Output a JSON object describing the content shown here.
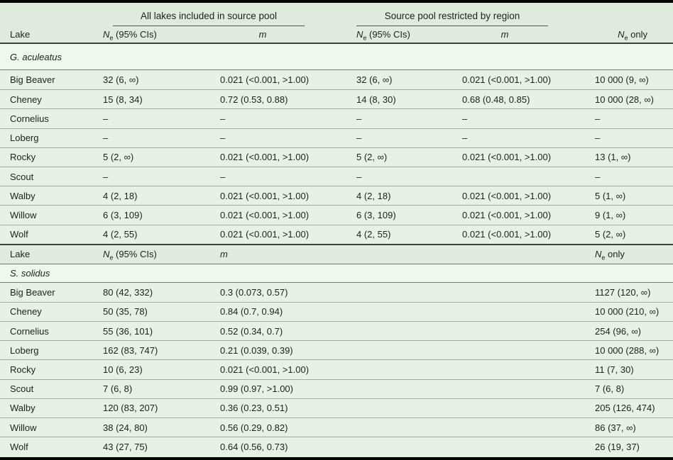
{
  "colors": {
    "page_background": "#e6f2e3",
    "header_background": "#dfebdc",
    "species_row_background": "#eef8eb",
    "frame_bar": "#050505",
    "heavy_rule": "#39423a",
    "row_rule": "#9fad9e",
    "text": "#1c211c"
  },
  "header": {
    "groups": [
      {
        "label": "All lakes included in source pool"
      },
      {
        "label": "Source pool restricted by region"
      }
    ],
    "columns": [
      "Lake",
      "Ne (95% CIs)",
      "m",
      "Ne (95% CIs)",
      "m",
      "Ne only"
    ]
  },
  "mid_header": {
    "columns": [
      "Lake",
      "Ne (95% CIs)",
      "m",
      "Ne only"
    ]
  },
  "sections": [
    {
      "species": "G. aculeatus",
      "rows": [
        {
          "lake": "Big Beaver",
          "ne_all": "32 (6, ∞)",
          "m_all": "0.021 (<0.001, >1.00)",
          "ne_region": "32 (6, ∞)",
          "m_region": "0.021 (<0.001, >1.00)",
          "ne_only": "10 000 (9, ∞)"
        },
        {
          "lake": "Cheney",
          "ne_all": "15 (8, 34)",
          "m_all": "0.72 (0.53, 0.88)",
          "ne_region": "14 (8, 30)",
          "m_region": "0.68 (0.48, 0.85)",
          "ne_only": "10 000 (28, ∞)"
        },
        {
          "lake": "Cornelius",
          "ne_all": "–",
          "m_all": "–",
          "ne_region": "–",
          "m_region": "–",
          "ne_only": "–"
        },
        {
          "lake": "Loberg",
          "ne_all": "–",
          "m_all": "–",
          "ne_region": "–",
          "m_region": "–",
          "ne_only": "–"
        },
        {
          "lake": "Rocky",
          "ne_all": "5 (2, ∞)",
          "m_all": "0.021 (<0.001, >1.00)",
          "ne_region": "5 (2, ∞)",
          "m_region": "0.021 (<0.001, >1.00)",
          "ne_only": "13 (1, ∞)"
        },
        {
          "lake": "Scout",
          "ne_all": "–",
          "m_all": "–",
          "ne_region": "–",
          "m_region": "",
          "ne_only": "–"
        },
        {
          "lake": "Walby",
          "ne_all": "4 (2, 18)",
          "m_all": "0.021 (<0.001, >1.00)",
          "ne_region": "4 (2, 18)",
          "m_region": "0.021 (<0.001, >1.00)",
          "ne_only": "5 (1, ∞)"
        },
        {
          "lake": "Willow",
          "ne_all": "6 (3, 109)",
          "m_all": "0.021 (<0.001, >1.00)",
          "ne_region": "6 (3, 109)",
          "m_region": "0.021 (<0.001, >1.00)",
          "ne_only": "9 (1, ∞)"
        },
        {
          "lake": "Wolf",
          "ne_all": "4 (2, 55)",
          "m_all": "0.021 (<0.001, >1.00)",
          "ne_region": "4 (2, 55)",
          "m_region": "0.021 (<0.001, >1.00)",
          "ne_only": "5 (2, ∞)"
        }
      ]
    },
    {
      "species": "S. solidus",
      "rows": [
        {
          "lake": "Big Beaver",
          "ne_all": "80 (42, 332)",
          "m_all": "0.3 (0.073, 0.57)",
          "ne_only": "1127 (120, ∞)"
        },
        {
          "lake": "Cheney",
          "ne_all": "50 (35, 78)",
          "m_all": "0.84 (0.7, 0.94)",
          "ne_only": "10 000 (210, ∞)"
        },
        {
          "lake": "Cornelius",
          "ne_all": "55 (36, 101)",
          "m_all": "0.52 (0.34, 0.7)",
          "ne_only": "254 (96, ∞)"
        },
        {
          "lake": "Loberg",
          "ne_all": "162 (83, 747)",
          "m_all": "0.21 (0.039, 0.39)",
          "ne_only": "10 000 (288, ∞)"
        },
        {
          "lake": "Rocky",
          "ne_all": "10 (6, 23)",
          "m_all": "0.021 (<0.001, >1.00)",
          "ne_only": "11 (7, 30)"
        },
        {
          "lake": "Scout",
          "ne_all": "7 (6, 8)",
          "m_all": "0.99 (0.97, >1.00)",
          "ne_only": "7 (6, 8)"
        },
        {
          "lake": "Walby",
          "ne_all": "120 (83, 207)",
          "m_all": "0.36 (0.23, 0.51)",
          "ne_only": "205 (126, 474)"
        },
        {
          "lake": "Willow",
          "ne_all": "38 (24, 80)",
          "m_all": "0.56 (0.29, 0.82)",
          "ne_only": "86 (37, ∞)"
        },
        {
          "lake": "Wolf",
          "ne_all": "43 (27, 75)",
          "m_all": "0.64 (0.56, 0.73)",
          "ne_only": "26 (19, 37)"
        }
      ]
    }
  ]
}
